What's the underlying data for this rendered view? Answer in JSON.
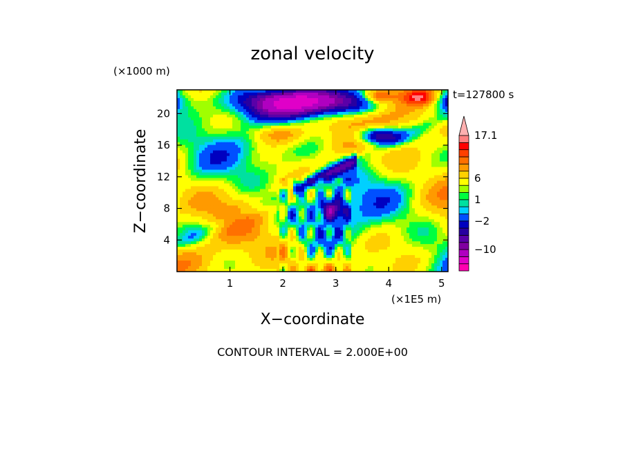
{
  "chart_data": {
    "type": "heatmap",
    "title": "zonal velocity",
    "xlabel": "X−coordinate",
    "ylabel": "Z−coordinate",
    "x_unit": "(×1E5 m)",
    "y_unit": "(×1000 m)",
    "time_label": "t=127800 s",
    "footer": "CONTOUR INTERVAL = 2.000E+00",
    "xlim": [
      0,
      5.12
    ],
    "ylim": [
      0,
      23
    ],
    "x_ticks": [
      "1",
      "2",
      "3",
      "4",
      "5"
    ],
    "y_ticks": [
      "4",
      "8",
      "12",
      "16",
      "20"
    ],
    "x_tick_values": [
      1,
      2,
      3,
      4,
      5
    ],
    "y_tick_values": [
      4,
      8,
      12,
      16,
      20
    ],
    "colorbar": {
      "labels": [
        "17.1",
        "6",
        "1",
        "−2",
        "−10"
      ],
      "label_values": [
        17.1,
        6,
        1,
        -2,
        -10
      ],
      "levels": [
        -20,
        -16,
        -12,
        -10,
        -8,
        -6,
        -4,
        -2,
        -1,
        0,
        1,
        2,
        4,
        6,
        8,
        10,
        12,
        14,
        17.1
      ],
      "colors": [
        "#ff00b0",
        "#e000c8",
        "#b000c0",
        "#8000a0",
        "#5a00a8",
        "#2800a0",
        "#0000c0",
        "#0050ff",
        "#00d0ff",
        "#00e0a0",
        "#00ff40",
        "#a0ff00",
        "#ffff00",
        "#ffd000",
        "#ff9a00",
        "#ff7000",
        "#ff4000",
        "#ff0000",
        "#ff8080",
        "#ffb0b0"
      ]
    }
  }
}
